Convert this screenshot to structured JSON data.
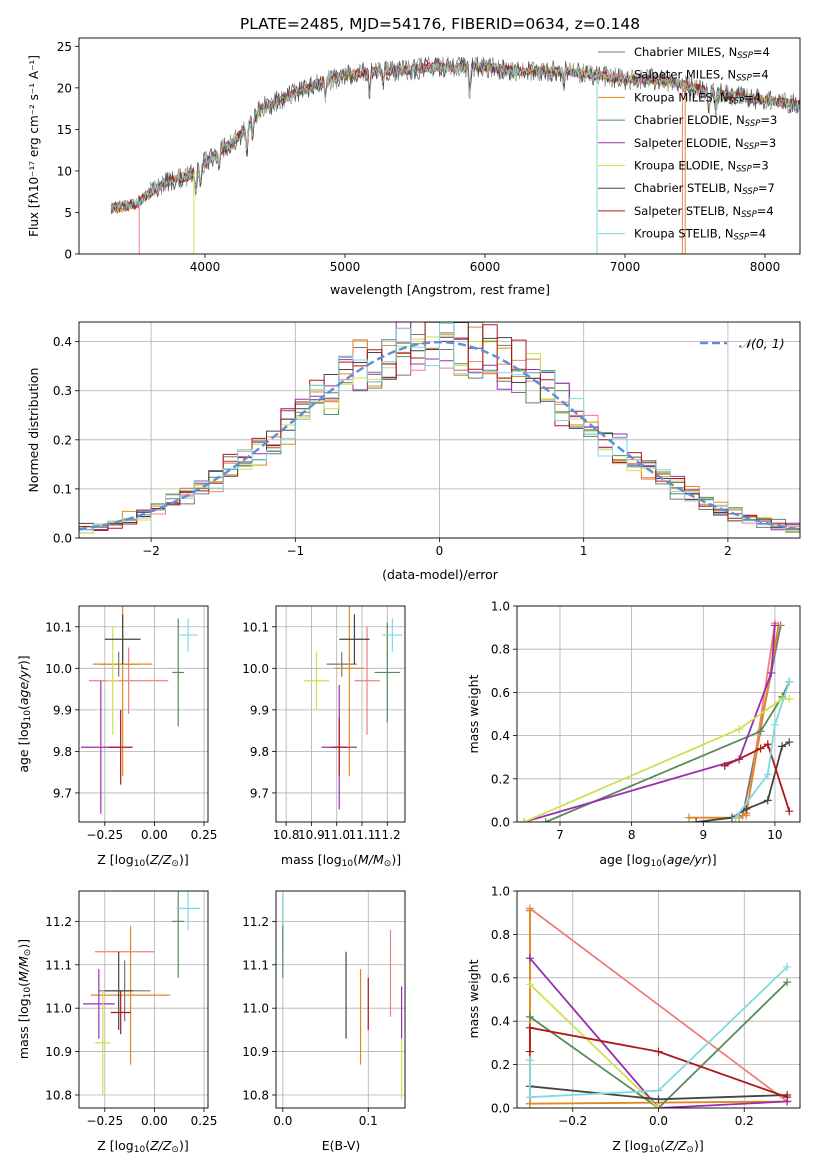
{
  "figure_title": "PLATE=2485, MJD=54176, FIBERID=0634, z=0.148",
  "colors": {
    "Chabrier MILES": "#777777",
    "Salpeter MILES": "#f08080",
    "Kroupa MILES": "#e08a1e",
    "Chabrier ELODIE": "#5a8a5a",
    "Salpeter ELODIE": "#9a2eb0",
    "Kroupa ELODIE": "#d0e050",
    "Chabrier STELIB": "#444444",
    "Salpeter STELIB": "#b01818",
    "Kroupa STELIB": "#80d8e0",
    "gaussian": "#5b8fd8"
  },
  "chart_data": [
    {
      "id": "spectrum",
      "type": "line",
      "title": "PLATE=2485, MJD=54176, FIBERID=0634, z=0.148",
      "xlabel": "wavelength [Angstrom, rest frame]",
      "ylabel": "Flux [fλ10⁻¹⁷ erg cm⁻² s⁻¹ A⁻¹]",
      "xlim": [
        3100,
        8250
      ],
      "ylim": [
        0,
        26
      ],
      "xticks": [
        4000,
        5000,
        6000,
        7000,
        8000
      ],
      "yticks": [
        0,
        5,
        10,
        15,
        20,
        25
      ],
      "grid": false,
      "legend_position": "right",
      "continuum": {
        "x": [
          3330,
          3500,
          3700,
          3900,
          4000,
          4200,
          4300,
          4400,
          4600,
          4800,
          5000,
          5200,
          5400,
          5600,
          5800,
          6000,
          6200,
          6400,
          6600,
          6800,
          7000,
          7200,
          7400,
          7600,
          7800,
          8000,
          8250
        ],
        "y": [
          5.5,
          6.0,
          8.5,
          9.5,
          11.0,
          13.5,
          15.0,
          17.5,
          19.0,
          20.5,
          21.5,
          22.0,
          22.0,
          22.5,
          22.5,
          22.5,
          22.0,
          22.0,
          22.0,
          21.5,
          21.0,
          21.0,
          20.5,
          19.5,
          19.0,
          18.5,
          18.0
        ]
      },
      "series": [
        {
          "name": "Chabrier MILES, N_SSP=4",
          "label_base": "Chabrier MILES, N",
          "label_sub": "SSP",
          "label_tail": "=4",
          "color_key": "Chabrier MILES",
          "start": 3330
        },
        {
          "name": "Salpeter MILES, N_SSP=4",
          "label_base": "Salpeter MILES, N",
          "label_sub": "SSP",
          "label_tail": "=4",
          "color_key": "Salpeter MILES",
          "start": 3530
        },
        {
          "name": "Kroupa MILES, N_SSP=4",
          "label_base": "Kroupa MILES, N",
          "label_sub": "SSP",
          "label_tail": "=4",
          "color_key": "Kroupa MILES",
          "start": 3330
        },
        {
          "name": "Chabrier ELODIE, N_SSP=3",
          "label_base": "Chabrier ELODIE, N",
          "label_sub": "SSP",
          "label_tail": "=3",
          "color_key": "Chabrier ELODIE",
          "start": 3330
        },
        {
          "name": "Salpeter ELODIE, N_SSP=3",
          "label_base": "Salpeter ELODIE, N",
          "label_sub": "SSP",
          "label_tail": "=3",
          "color_key": "Salpeter ELODIE",
          "start": 3330
        },
        {
          "name": "Kroupa ELODIE, N_SSP=3",
          "label_base": "Kroupa ELODIE, N",
          "label_sub": "SSP",
          "label_tail": "=3",
          "color_key": "Kroupa ELODIE",
          "start": 3330
        },
        {
          "name": "Chabrier STELIB, N_SSP=7",
          "label_base": "Chabrier STELIB, N",
          "label_sub": "SSP",
          "label_tail": "=7",
          "color_key": "Chabrier STELIB",
          "start": 3330
        },
        {
          "name": "Salpeter STELIB, N_SSP=4",
          "label_base": "Salpeter STELIB, N",
          "label_sub": "SSP",
          "label_tail": "=4",
          "color_key": "Salpeter STELIB",
          "start": 3330
        },
        {
          "name": "Kroupa STELIB, N_SSP=4",
          "label_base": "Kroupa STELIB, N",
          "label_sub": "SSP",
          "label_tail": "=4",
          "color_key": "Kroupa STELIB",
          "start": 3330
        }
      ],
      "dropouts": [
        {
          "color_key": "Salpeter MILES",
          "x": 3530
        },
        {
          "color_key": "Kroupa ELODIE",
          "x": 3920
        },
        {
          "color_key": "Kroupa STELIB",
          "x": 6800
        },
        {
          "color_key": "Salpeter MILES",
          "x": 7410
        },
        {
          "color_key": "Kroupa MILES",
          "x": 7430
        }
      ]
    },
    {
      "id": "residuals",
      "type": "line",
      "xlabel": "(data-model)/error",
      "ylabel": "Normed distribution",
      "xlim": [
        -2.5,
        2.5
      ],
      "ylim": [
        0,
        0.44
      ],
      "xticks": [
        -2,
        -1,
        0,
        1,
        2
      ],
      "xtick_labels": [
        "−2",
        "−1",
        "0",
        "1",
        "2"
      ],
      "yticks": [
        0.0,
        0.1,
        0.2,
        0.3,
        0.4
      ],
      "ytick_labels": [
        "0.0",
        "0.1",
        "0.2",
        "0.3",
        "0.4"
      ],
      "grid": true,
      "legend_position": "top-right",
      "legend_label": "𝒩(0, 1)",
      "gaussian": {
        "mean": 0,
        "sigma": 1
      },
      "histogram_bin_width": 0.1,
      "histogram_series_keys": [
        "Chabrier MILES",
        "Salpeter MILES",
        "Kroupa MILES",
        "Chabrier ELODIE",
        "Salpeter ELODIE",
        "Kroupa ELODIE",
        "Chabrier STELIB",
        "Salpeter STELIB",
        "Kroupa STELIB"
      ]
    },
    {
      "id": "age-vs-Z",
      "type": "scatter",
      "xlabel": "Z [log₁₀(Z/Z⊙)]",
      "ylabel": "age  [log₁₀(age/yr)]",
      "xlim": [
        -0.38,
        0.27
      ],
      "ylim": [
        9.63,
        10.15
      ],
      "xticks": [
        -0.25,
        0.0,
        0.25
      ],
      "xtick_labels": [
        "−0.25",
        "0.00",
        "0.25"
      ],
      "yticks": [
        9.7,
        9.8,
        9.9,
        10.0,
        10.1
      ],
      "ytick_labels": [
        "9.7",
        "9.8",
        "9.9",
        "10.0",
        "10.1"
      ],
      "grid": true,
      "points": [
        {
          "key": "Chabrier MILES",
          "x": -0.18,
          "xerr": 0.1,
          "y": 10.01,
          "yerr": 0.03
        },
        {
          "key": "Salpeter MILES",
          "x": -0.13,
          "xerr": 0.2,
          "y": 9.97,
          "yerr": 0.08
        },
        {
          "key": "Kroupa MILES",
          "x": -0.16,
          "xerr": 0.15,
          "y": 10.01,
          "yerr": 0.27
        },
        {
          "key": "Chabrier ELODIE",
          "x": 0.12,
          "xerr": 0.03,
          "y": 9.99,
          "yerr": 0.13
        },
        {
          "key": "Salpeter ELODIE",
          "x": -0.27,
          "xerr": 0.1,
          "y": 9.81,
          "yerr": 0.16
        },
        {
          "key": "Kroupa ELODIE",
          "x": -0.21,
          "xerr": 0.03,
          "y": 9.97,
          "yerr": 0.13
        },
        {
          "key": "Chabrier STELIB",
          "x": -0.16,
          "xerr": 0.09,
          "y": 10.07,
          "yerr": 0.06
        },
        {
          "key": "Salpeter STELIB",
          "x": -0.17,
          "xerr": 0.06,
          "y": 9.81,
          "yerr": 0.09
        },
        {
          "key": "Kroupa STELIB",
          "x": 0.17,
          "xerr": 0.05,
          "y": 10.08,
          "yerr": 0.04
        }
      ]
    },
    {
      "id": "age-vs-mass",
      "type": "scatter",
      "xlabel": "mass [log₁₀(M/M⊙)]",
      "ylabel": "",
      "xlim": [
        10.76,
        11.27
      ],
      "ylim": [
        9.63,
        10.15
      ],
      "xticks": [
        10.8,
        10.9,
        11.0,
        11.1,
        11.2
      ],
      "xtick_labels": [
        "10.8",
        "10.9",
        "11.0",
        "11.1",
        "11.2"
      ],
      "yticks": [
        9.7,
        9.8,
        9.9,
        10.0,
        10.1
      ],
      "ytick_labels": [
        "9.7",
        "9.8",
        "9.9",
        "10.0",
        "10.1"
      ],
      "grid": true,
      "points": [
        {
          "key": "Chabrier MILES",
          "x": 11.02,
          "xerr": 0.06,
          "y": 10.01,
          "yerr": 0.03
        },
        {
          "key": "Salpeter MILES",
          "x": 11.12,
          "xerr": 0.05,
          "y": 9.97,
          "yerr": 0.13
        },
        {
          "key": "Kroupa MILES",
          "x": 11.05,
          "xerr": 0.06,
          "y": 10.0,
          "yerr": 0.26
        },
        {
          "key": "Chabrier ELODIE",
          "x": 11.2,
          "xerr": 0.05,
          "y": 9.99,
          "yerr": 0.12
        },
        {
          "key": "Salpeter ELODIE",
          "x": 11.01,
          "xerr": 0.07,
          "y": 9.81,
          "yerr": 0.15
        },
        {
          "key": "Kroupa ELODIE",
          "x": 10.92,
          "xerr": 0.05,
          "y": 9.97,
          "yerr": 0.07
        },
        {
          "key": "Chabrier STELIB",
          "x": 11.07,
          "xerr": 0.06,
          "y": 10.07,
          "yerr": 0.06
        },
        {
          "key": "Salpeter STELIB",
          "x": 11.01,
          "xerr": 0.03,
          "y": 9.81,
          "yerr": 0.07
        },
        {
          "key": "Kroupa STELIB",
          "x": 11.22,
          "xerr": 0.04,
          "y": 10.08,
          "yerr": 0.04
        }
      ]
    },
    {
      "id": "mass-weight-vs-age",
      "type": "line",
      "xlabel": "age  [log₁₀(age/yr)]",
      "ylabel": "mass weight",
      "xlim": [
        6.4,
        10.35
      ],
      "ylim": [
        0.0,
        1.0
      ],
      "xticks": [
        7,
        8,
        9,
        10
      ],
      "xtick_labels": [
        "7",
        "8",
        "9",
        "10"
      ],
      "yticks": [
        0.0,
        0.2,
        0.4,
        0.6,
        0.8,
        1.0
      ],
      "ytick_labels": [
        "0.0",
        "0.2",
        "0.4",
        "0.6",
        "0.8",
        "1.0"
      ],
      "grid": true,
      "series": [
        {
          "key": "Chabrier MILES",
          "x": [
            9.55,
            10.08
          ],
          "y": [
            0.03,
            0.91
          ]
        },
        {
          "key": "Salpeter MILES",
          "x": [
            9.6,
            10.0
          ],
          "y": [
            0.03,
            0.92
          ]
        },
        {
          "key": "Kroupa MILES",
          "x": [
            8.8,
            9.5,
            9.6,
            10.05
          ],
          "y": [
            0.02,
            0.02,
            0.04,
            0.91
          ]
        },
        {
          "key": "Chabrier ELODIE",
          "x": [
            6.8,
            9.8,
            10.1,
            10.2
          ],
          "y": [
            0.0,
            0.42,
            0.58,
            0.65
          ]
        },
        {
          "key": "Salpeter ELODIE",
          "x": [
            6.5,
            9.5,
            9.95,
            10.0
          ],
          "y": [
            0.0,
            0.29,
            0.69,
            0.91
          ]
        },
        {
          "key": "Kroupa ELODIE",
          "x": [
            6.5,
            9.5,
            10.1,
            10.2
          ],
          "y": [
            0.0,
            0.43,
            0.57,
            0.57
          ]
        },
        {
          "key": "Chabrier STELIB",
          "x": [
            8.9,
            9.4,
            9.6,
            9.9,
            10.1,
            10.2
          ],
          "y": [
            0.0,
            0.02,
            0.06,
            0.1,
            0.35,
            0.37
          ]
        },
        {
          "key": "Salpeter STELIB",
          "x": [
            9.3,
            9.8,
            9.9,
            10.2
          ],
          "y": [
            0.26,
            0.34,
            0.36,
            0.05
          ]
        },
        {
          "key": "Kroupa STELIB",
          "x": [
            9.45,
            9.9,
            10.0,
            10.2
          ],
          "y": [
            0.02,
            0.22,
            0.45,
            0.65
          ]
        }
      ]
    },
    {
      "id": "mass-vs-Z",
      "type": "scatter",
      "xlabel": "Z [log₁₀(Z/Z⊙)]",
      "ylabel": "mass [log₁₀(M/M⊙)]",
      "xlim": [
        -0.38,
        0.27
      ],
      "ylim": [
        10.77,
        11.27
      ],
      "xticks": [
        -0.25,
        0.0,
        0.25
      ],
      "xtick_labels": [
        "−0.25",
        "0.00",
        "0.25"
      ],
      "yticks": [
        10.8,
        10.9,
        11.0,
        11.1,
        11.2
      ],
      "ytick_labels": [
        "10.8",
        "10.9",
        "11.0",
        "11.1",
        "11.2"
      ],
      "grid": true,
      "points": [
        {
          "key": "Chabrier MILES",
          "x": -0.15,
          "xerr": 0.13,
          "y": 11.04,
          "yerr": 0.07
        },
        {
          "key": "Salpeter MILES",
          "x": -0.15,
          "xerr": 0.15,
          "y": 11.13,
          "yerr": 0.0
        },
        {
          "key": "Kroupa MILES",
          "x": -0.12,
          "xerr": 0.2,
          "y": 11.03,
          "yerr": 0.16
        },
        {
          "key": "Chabrier ELODIE",
          "x": 0.12,
          "xerr": 0.03,
          "y": 11.2,
          "yerr": 0.13
        },
        {
          "key": "Salpeter ELODIE",
          "x": -0.28,
          "xerr": 0.08,
          "y": 11.01,
          "yerr": 0.08
        },
        {
          "key": "Kroupa ELODIE",
          "x": -0.26,
          "xerr": 0.04,
          "y": 10.92,
          "yerr": 0.12
        },
        {
          "key": "Chabrier STELIB",
          "x": -0.18,
          "xerr": 0.07,
          "y": 11.04,
          "yerr": 0.09
        },
        {
          "key": "Salpeter STELIB",
          "x": -0.17,
          "xerr": 0.05,
          "y": 10.99,
          "yerr": 0.05
        },
        {
          "key": "Kroupa STELIB",
          "x": 0.17,
          "xerr": 0.06,
          "y": 11.23,
          "yerr": 0.05
        }
      ]
    },
    {
      "id": "mass-vs-EBV",
      "type": "scatter",
      "xlabel": "E(B-V)",
      "ylabel": "",
      "xlim": [
        -0.008,
        0.143
      ],
      "ylim": [
        10.77,
        11.27
      ],
      "xticks": [
        0.0,
        0.1
      ],
      "xtick_labels": [
        "0.0",
        "0.1"
      ],
      "yticks": [
        10.8,
        10.9,
        11.0,
        11.1,
        11.2
      ],
      "ytick_labels": [
        "10.8",
        "10.9",
        "11.0",
        "11.1",
        "11.2"
      ],
      "grid": true,
      "points": [
        {
          "key": "Chabrier MILES",
          "x": 0.0,
          "xerr": 0,
          "y": 11.2,
          "yerr": 0.06
        },
        {
          "key": "Kroupa STELIB",
          "x": 0.0,
          "xerr": 0,
          "y": 11.21,
          "yerr": 0.07
        },
        {
          "key": "Chabrier ELODIE",
          "x": 0.0,
          "xerr": 0,
          "y": 11.13,
          "yerr": 0.06
        },
        {
          "key": "Chabrier STELIB",
          "x": 0.074,
          "xerr": 0,
          "y": 11.03,
          "yerr": 0.1
        },
        {
          "key": "Kroupa MILES",
          "x": 0.091,
          "xerr": 0,
          "y": 10.98,
          "yerr": 0.11
        },
        {
          "key": "Salpeter STELIB",
          "x": 0.1,
          "xerr": 0,
          "y": 11.01,
          "yerr": 0.06
        },
        {
          "key": "Salpeter MILES",
          "x": 0.126,
          "xerr": 0,
          "y": 11.08,
          "yerr": 0.1
        },
        {
          "key": "Salpeter ELODIE",
          "x": 0.139,
          "xerr": 0,
          "y": 10.99,
          "yerr": 0.06
        },
        {
          "key": "Kroupa ELODIE",
          "x": 0.139,
          "xerr": 0,
          "y": 10.86,
          "yerr": 0.07
        }
      ]
    },
    {
      "id": "mass-weight-vs-Z",
      "type": "line",
      "xlabel": "Z [log₁₀(Z/Z⊙)]",
      "ylabel": "mass weight",
      "xlim": [
        -0.33,
        0.33
      ],
      "ylim": [
        0.0,
        1.0
      ],
      "xticks": [
        -0.2,
        0.0,
        0.2
      ],
      "xtick_labels": [
        "−0.2",
        "0.0",
        "0.2"
      ],
      "yticks": [
        0.0,
        0.2,
        0.4,
        0.6,
        0.8,
        1.0
      ],
      "ytick_labels": [
        "0.0",
        "0.2",
        "0.4",
        "0.6",
        "0.8",
        "1.0"
      ],
      "grid": true,
      "series": [
        {
          "key": "Chabrier MILES",
          "x": [
            -0.3,
            -0.3
          ],
          "y": [
            0.02,
            0.91
          ]
        },
        {
          "key": "Salpeter MILES",
          "x": [
            -0.3,
            0.3
          ],
          "y": [
            0.92,
            0.03
          ]
        },
        {
          "key": "Kroupa MILES",
          "x": [
            -0.3,
            -0.3,
            0.3
          ],
          "y": [
            0.91,
            0.02,
            0.03
          ]
        },
        {
          "key": "Chabrier ELODIE",
          "x": [
            -0.3,
            0.0,
            0.3
          ],
          "y": [
            0.42,
            0.0,
            0.58
          ]
        },
        {
          "key": "Salpeter ELODIE",
          "x": [
            -0.3,
            0.0,
            0.3
          ],
          "y": [
            0.69,
            0.0,
            0.03
          ]
        },
        {
          "key": "Kroupa ELODIE",
          "x": [
            -0.3,
            0.0
          ],
          "y": [
            0.57,
            0.0
          ]
        },
        {
          "key": "Chabrier STELIB",
          "x": [
            -0.3,
            0.0,
            0.3
          ],
          "y": [
            0.1,
            0.04,
            0.06
          ]
        },
        {
          "key": "Salpeter STELIB",
          "x": [
            -0.3,
            -0.3,
            0.0,
            0.3
          ],
          "y": [
            0.26,
            0.37,
            0.26,
            0.05
          ]
        },
        {
          "key": "Kroupa STELIB",
          "x": [
            -0.3,
            -0.3,
            0.0,
            0.3
          ],
          "y": [
            0.22,
            0.05,
            0.08,
            0.65
          ]
        }
      ]
    }
  ]
}
